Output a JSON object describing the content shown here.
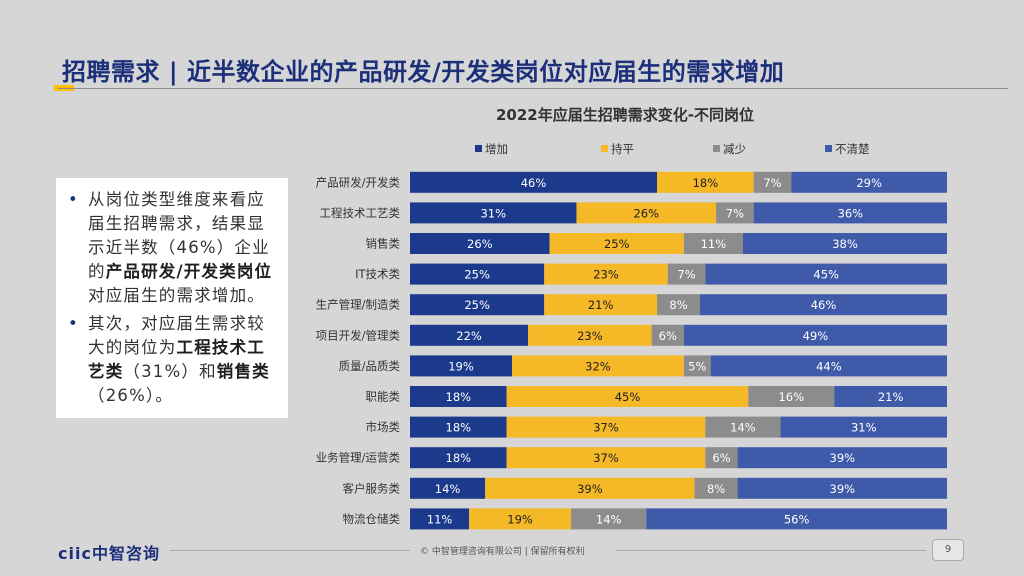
{
  "slide": {
    "title": "招聘需求 | 近半数企业的产品研发/开发类岗位对应届生的需求增加",
    "bullets": [
      [
        {
          "t": "从岗位类型维度来看应届生招聘需求，结果显示近半数（46%）企业的",
          "b": false
        },
        {
          "t": "产品研发/开发类岗位",
          "b": true
        },
        {
          "t": "对应届生的需求增加。",
          "b": false
        }
      ],
      [
        {
          "t": "其次，对应届生需求较大的岗位为",
          "b": false
        },
        {
          "t": "工程技术工艺类",
          "b": true
        },
        {
          "t": "（31%）和",
          "b": false
        },
        {
          "t": "销售类",
          "b": true
        },
        {
          "t": "（26%）。",
          "b": false
        }
      ]
    ],
    "footer": {
      "logo_latin": "ciic",
      "logo_cn": "中智咨询",
      "copyright": "© 中智管理咨询有限公司 | 保留所有权利",
      "page_number": "9"
    }
  },
  "chart_data": {
    "type": "bar",
    "orientation": "horizontal",
    "stacked": true,
    "percent_stacked": true,
    "title": "2022年应届生招聘需求变化-不同岗位",
    "legend_position": "top",
    "categories": [
      "产品研发/开发类",
      "工程技术工艺类",
      "销售类",
      "IT技术类",
      "生产管理/制造类",
      "项目开发/管理类",
      "质量/品质类",
      "职能类",
      "市场类",
      "业务管理/运营类",
      "客户服务类",
      "物流仓储类"
    ],
    "series": [
      {
        "name": "增加",
        "color": "#1b3a8c",
        "label_color": "#ffffff",
        "values": [
          46,
          31,
          26,
          25,
          25,
          22,
          19,
          18,
          18,
          18,
          14,
          11
        ]
      },
      {
        "name": "持平",
        "color": "#f5b827",
        "label_color": "#1f1f1f",
        "values": [
          18,
          26,
          25,
          23,
          21,
          23,
          32,
          45,
          37,
          37,
          39,
          19
        ]
      },
      {
        "name": "减少",
        "color": "#8c8c8c",
        "label_color": "#ffffff",
        "values": [
          7,
          7,
          11,
          7,
          8,
          6,
          5,
          16,
          14,
          6,
          8,
          14
        ]
      },
      {
        "name": "不清楚",
        "color": "#3f5aa8",
        "label_color": "#ffffff",
        "values": [
          29,
          36,
          38,
          45,
          46,
          49,
          44,
          21,
          31,
          39,
          39,
          56
        ]
      }
    ],
    "value_suffix": "%"
  }
}
